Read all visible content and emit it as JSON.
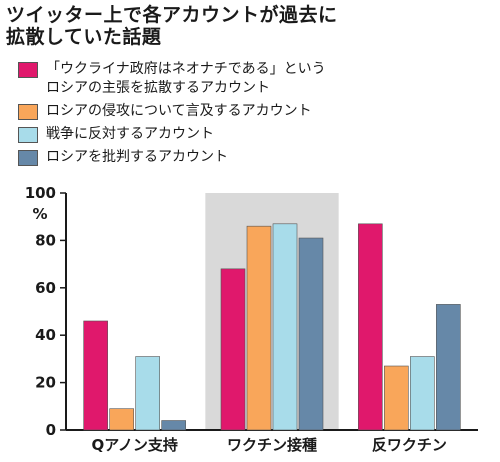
{
  "title": "ツイッター上で各アカウントが過去に\n拡散していた話題",
  "chart_data": {
    "type": "bar",
    "categories": [
      "Qアノン支持",
      "ワクチン接種",
      "反ワクチン"
    ],
    "series": [
      {
        "name": "「ウクライナ政府はネオナチである」という\nロシアの主張を拡散するアカウント",
        "color": "#e0186c",
        "values": [
          46,
          68,
          87
        ]
      },
      {
        "name": "ロシアの侵攻について言及するアカウント",
        "color": "#f9a65a",
        "values": [
          9,
          86,
          27
        ]
      },
      {
        "name": "戦争に反対するアカウント",
        "color": "#a8dcea",
        "values": [
          31,
          87,
          31
        ]
      },
      {
        "name": "ロシアを批判するアカウント",
        "color": "#6688a8",
        "values": [
          4,
          81,
          53
        ]
      }
    ],
    "ylim": [
      0,
      100
    ],
    "yticks": [
      0,
      20,
      40,
      60,
      80,
      100
    ],
    "yunit": "%",
    "highlight_category": "ワクチン接種",
    "highlight_color": "#d9d9d9",
    "legend_position": "top"
  }
}
